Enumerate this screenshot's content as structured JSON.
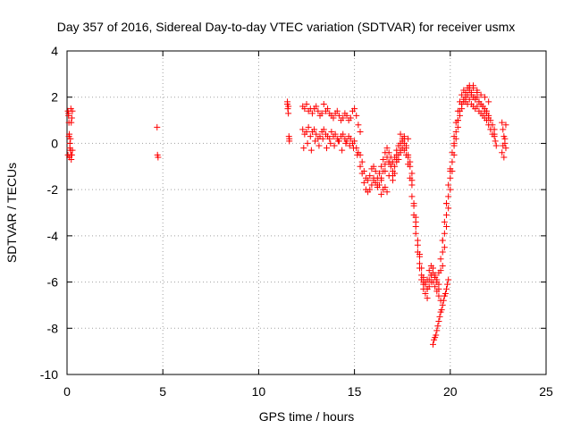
{
  "chart_data": {
    "type": "scatter",
    "title": "Day 357 of 2016, Sidereal Day-to-day VTEC variation (SDTVAR) for receiver usmx",
    "xlabel": "GPS time / hours",
    "ylabel": "SDTVAR / TECUs",
    "xlim": [
      0,
      25
    ],
    "ylim": [
      -10,
      4
    ],
    "xticks": [
      "0",
      "5",
      "10",
      "15",
      "20",
      "25"
    ],
    "yticks": [
      "4",
      "2",
      "0",
      "-2",
      "-4",
      "-6",
      "-8",
      "-10"
    ],
    "grid": true,
    "marker": "+",
    "color": "#ff0000",
    "x": [
      0.05,
      0.08,
      0.1,
      0.12,
      0.15,
      0.18,
      0.2,
      0.22,
      0.25,
      0.28,
      0.05,
      0.1,
      0.15,
      0.2,
      0.25,
      0.08,
      0.18,
      0.22,
      0.12,
      0.28,
      4.7,
      4.72,
      4.75,
      11.5,
      11.52,
      11.55,
      11.58,
      11.6,
      11.5,
      11.55,
      11.6,
      12.3,
      12.4,
      12.5,
      12.6,
      12.7,
      12.8,
      12.9,
      13.0,
      13.1,
      13.2,
      13.3,
      13.4,
      13.5,
      13.6,
      13.7,
      13.8,
      13.9,
      14.0,
      14.1,
      14.2,
      14.3,
      14.4,
      14.5,
      14.6,
      14.7,
      14.8,
      14.9,
      15.0,
      15.1,
      15.2,
      15.3,
      12.3,
      12.4,
      12.5,
      12.6,
      12.7,
      12.8,
      12.9,
      13.0,
      13.1,
      13.2,
      13.3,
      13.4,
      13.5,
      13.6,
      13.7,
      13.8,
      13.9,
      14.0,
      14.1,
      14.2,
      14.3,
      14.4,
      14.5,
      14.6,
      14.7,
      14.8,
      14.9,
      15.0,
      15.1,
      15.2,
      12.35,
      12.55,
      12.75,
      12.95,
      13.15,
      13.35,
      13.55,
      13.75,
      13.95,
      14.15,
      14.35,
      14.55,
      14.75,
      14.95,
      15.15,
      15.3,
      15.4,
      15.5,
      15.6,
      15.7,
      15.8,
      15.9,
      16.0,
      16.1,
      16.2,
      16.3,
      16.4,
      16.5,
      16.6,
      16.7,
      16.8,
      16.9,
      17.0,
      17.1,
      17.2,
      17.3,
      17.4,
      17.5,
      17.6,
      17.7,
      17.8,
      17.9,
      18.0,
      18.1,
      18.2,
      18.3,
      18.4,
      18.5,
      18.6,
      18.7,
      18.8,
      18.9,
      19.0,
      19.1,
      19.2,
      19.3,
      19.4,
      19.5,
      19.6,
      19.7,
      19.8,
      19.9,
      20.0,
      20.1,
      20.2,
      20.3,
      20.4,
      20.5,
      20.6,
      20.7,
      20.8,
      20.9,
      21.0,
      21.1,
      21.2,
      21.3,
      21.4,
      21.5,
      21.6,
      21.7,
      21.8,
      21.9,
      22.0,
      22.1,
      22.2,
      22.3,
      15.3,
      15.4,
      15.5,
      15.6,
      15.7,
      15.8,
      15.9,
      16.0,
      16.1,
      16.2,
      16.3,
      16.4,
      16.5,
      16.6,
      16.7,
      16.8,
      16.9,
      17.0,
      17.1,
      17.2,
      17.3,
      17.4,
      17.5,
      17.6,
      17.7,
      17.8,
      17.9,
      18.0,
      18.1,
      18.2,
      18.3,
      18.4,
      18.5,
      18.6,
      18.7,
      18.8,
      18.9,
      19.0,
      19.1,
      19.2,
      19.3,
      19.4,
      19.5,
      19.6,
      19.7,
      19.8,
      19.9,
      20.0,
      20.1,
      20.2,
      20.3,
      20.4,
      20.5,
      20.6,
      20.7,
      20.8,
      20.9,
      21.0,
      21.1,
      21.2,
      21.3,
      21.4,
      21.5,
      21.6,
      21.7,
      21.8,
      21.9,
      22.0,
      22.1,
      22.2,
      22.3,
      16.0,
      16.2,
      16.4,
      16.6,
      16.8,
      17.0,
      17.2,
      17.4,
      17.6,
      17.8,
      18.0,
      18.2,
      18.4,
      18.6,
      18.8,
      19.0,
      19.2,
      19.4,
      19.6,
      19.8,
      20.0,
      20.2,
      20.4,
      20.6,
      20.8,
      21.0,
      21.2,
      21.4,
      21.6,
      21.8,
      22.0,
      16.4,
      16.5,
      16.6,
      16.7,
      16.8,
      16.9,
      17.0,
      17.1,
      17.2,
      17.3,
      17.4,
      17.5,
      17.6,
      17.7,
      17.8,
      17.9,
      18.0,
      18.1,
      18.2,
      18.3,
      18.4,
      18.5,
      18.6,
      18.7,
      18.8,
      18.9,
      19.0,
      19.1,
      19.2,
      19.3,
      19.4,
      19.5,
      19.6,
      19.7,
      19.8,
      19.9,
      20.0,
      20.1,
      20.2,
      20.3,
      20.4,
      20.5,
      20.6,
      20.7,
      20.8,
      20.9,
      21.0,
      21.1,
      21.2,
      21.3,
      21.4,
      21.5,
      21.6,
      21.7,
      21.8,
      21.9,
      22.0,
      19.1,
      19.15,
      19.2,
      19.25,
      19.3,
      19.35,
      19.4,
      19.45,
      19.5,
      19.55,
      19.6,
      19.65,
      19.7,
      19.75,
      19.8,
      19.85,
      19.9,
      22.3,
      22.35,
      22.4,
      22.7,
      22.75,
      22.8,
      22.85,
      22.9,
      22.7,
      22.8,
      22.9,
      22.75,
      22.85
    ],
    "y": [
      1.4,
      1.2,
      0.9,
      0.4,
      0.0,
      -0.3,
      -0.5,
      -0.7,
      -0.5,
      -0.3,
      -0.5,
      0.3,
      -0.2,
      1.5,
      1.1,
      1.3,
      0.2,
      0.9,
      -0.6,
      1.4,
      0.7,
      -0.5,
      -0.6,
      1.8,
      1.5,
      1.3,
      0.3,
      0.2,
      1.7,
      1.6,
      0.1,
      1.6,
      1.5,
      1.7,
      1.4,
      1.5,
      1.3,
      1.5,
      1.6,
      1.4,
      1.2,
      1.3,
      1.7,
      1.4,
      1.5,
      1.3,
      1.2,
      1.1,
      1.3,
      1.4,
      1.2,
      1.0,
      1.1,
      1.3,
      1.2,
      1.0,
      1.1,
      1.4,
      1.5,
      1.2,
      0.8,
      0.5,
      0.6,
      0.4,
      0.5,
      0.7,
      0.3,
      0.5,
      0.6,
      0.4,
      0.2,
      0.3,
      0.5,
      0.6,
      0.4,
      0.3,
      0.2,
      0.5,
      0.3,
      0.4,
      0.2,
      0.1,
      0.3,
      0.4,
      0.2,
      0.1,
      0.3,
      0.2,
      0.0,
      0.1,
      -0.2,
      -0.4,
      -0.2,
      0.0,
      -0.3,
      0.1,
      -0.1,
      0.2,
      -0.2,
      0.0,
      -0.1,
      0.1,
      -0.3,
      0.0,
      -0.1,
      -0.2,
      -0.5,
      -0.5,
      -0.8,
      -1.2,
      -1.5,
      -1.6,
      -1.4,
      -1.1,
      -1.0,
      -1.2,
      -1.5,
      -1.3,
      -1.0,
      -0.7,
      -0.4,
      -0.2,
      -0.4,
      -0.6,
      -0.8,
      -0.6,
      -0.3,
      -0.1,
      0.0,
      0.1,
      0.0,
      -0.2,
      -0.5,
      -1.0,
      -1.8,
      -2.6,
      -3.4,
      -4.2,
      -4.9,
      -5.4,
      -5.8,
      -6.0,
      -5.9,
      -5.5,
      -5.3,
      -5.6,
      -5.8,
      -5.9,
      -5.6,
      -5.0,
      -4.2,
      -3.4,
      -2.6,
      -1.8,
      -1.1,
      -0.4,
      0.3,
      0.9,
      1.4,
      1.8,
      2.1,
      2.3,
      2.2,
      2.1,
      2.3,
      2.1,
      2.0,
      1.9,
      2.0,
      1.8,
      1.7,
      1.6,
      1.5,
      1.4,
      1.2,
      1.0,
      0.8,
      0.6,
      -1.0,
      -1.3,
      -1.7,
      -2.0,
      -2.1,
      -2.0,
      -1.8,
      -1.6,
      -1.7,
      -1.9,
      -1.8,
      -1.5,
      -1.2,
      -0.9,
      -0.6,
      -0.8,
      -1.0,
      -1.2,
      -1.0,
      -0.7,
      -0.5,
      -0.3,
      -0.2,
      -0.3,
      -0.5,
      -0.9,
      -1.5,
      -2.3,
      -3.1,
      -3.9,
      -4.7,
      -5.4,
      -5.9,
      -6.3,
      -6.5,
      -6.3,
      -5.9,
      -5.7,
      -6.0,
      -6.2,
      -6.4,
      -6.1,
      -5.5,
      -4.7,
      -3.9,
      -3.1,
      -2.3,
      -1.5,
      -0.8,
      -0.1,
      0.5,
      1.0,
      1.4,
      1.7,
      1.9,
      1.8,
      1.7,
      1.9,
      1.7,
      1.6,
      1.5,
      1.6,
      1.4,
      1.3,
      1.2,
      1.1,
      1.0,
      0.8,
      0.6,
      0.4,
      0.3,
      -1.5,
      -1.8,
      -1.6,
      -1.2,
      -0.8,
      -1.4,
      -0.8,
      -0.4,
      0.2,
      -0.6,
      -1.6,
      -3.2,
      -4.8,
      -6.0,
      -6.7,
      -6.0,
      -5.8,
      -6.3,
      -4.2,
      -2.6,
      -1.2,
      0.0,
      1.0,
      1.7,
      2.0,
      2.4,
      2.5,
      2.3,
      2.1,
      2.0,
      1.8,
      -2.2,
      -2.0,
      -1.9,
      -2.1,
      -1.4,
      -0.9,
      -1.6,
      -1.3,
      -0.5,
      -0.7,
      0.4,
      0.2,
      0.3,
      -0.1,
      0.2,
      -0.8,
      -1.3,
      -2.7,
      -3.6,
      -4.4,
      -5.2,
      -5.7,
      -6.1,
      -6.1,
      -6.3,
      -6.2,
      -5.7,
      -5.4,
      -5.7,
      -6.0,
      -6.6,
      -6.8,
      -5.3,
      -4.5,
      -3.6,
      -2.8,
      -2.0,
      -1.2,
      -0.5,
      0.2,
      0.7,
      1.2,
      1.5,
      1.8,
      2.0,
      2.4,
      2.5,
      2.2,
      2.4,
      2.0,
      2.2,
      1.8,
      1.7,
      1.6,
      1.4,
      1.3,
      1.1,
      -8.7,
      -8.5,
      -8.4,
      -8.3,
      -8.1,
      -7.9,
      -7.7,
      -7.5,
      -7.3,
      -7.2,
      -7.0,
      -6.8,
      -6.6,
      -6.5,
      -6.3,
      -6.1,
      -5.9,
      0.4,
      0.1,
      -0.1,
      0.9,
      0.6,
      0.3,
      0.0,
      -0.2,
      -0.4,
      -0.6,
      0.8,
      -0.1,
      0.2
    ]
  }
}
